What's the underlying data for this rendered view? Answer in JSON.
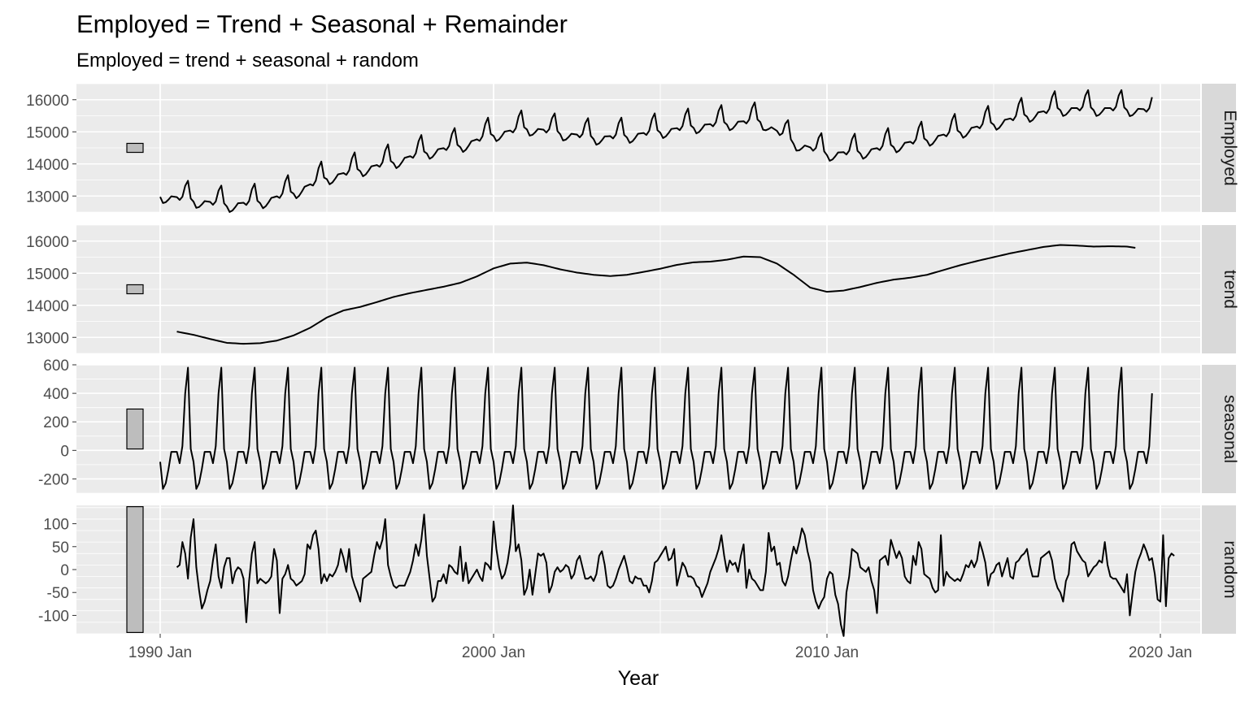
{
  "chart_data": {
    "type": "line",
    "title": "Employed = Trend + Seasonal + Remainder",
    "subtitle": "Employed = trend + seasonal + random",
    "xlabel": "Year",
    "x_range": [
      "1990 Jan",
      "2019 Sep"
    ],
    "x_ticks": [
      "1990 Jan",
      "2000 Jan",
      "2010 Jan",
      "2020 Jan"
    ],
    "grid": true,
    "scale_bars_shown": true,
    "panels": [
      {
        "name": "Employed",
        "ylim": [
          12500,
          16500
        ],
        "y_ticks": [
          13000,
          14000,
          15000,
          16000
        ],
        "start": 1990.0,
        "seasonal_overlay": true,
        "values": [
          13220,
          13000,
          13050,
          13150,
          13200,
          13180,
          13160,
          13250,
          13700,
          13650,
          13100,
          12780
        ],
        "base_knots": [
          [
            1990.0,
            13050
          ],
          [
            1991.0,
            12900
          ],
          [
            1992.0,
            12750
          ],
          [
            1993.0,
            12850
          ],
          [
            1994.0,
            13150
          ],
          [
            1995.0,
            13600
          ],
          [
            1996.0,
            13850
          ],
          [
            1997.0,
            14100
          ],
          [
            1998.0,
            14400
          ],
          [
            1999.0,
            14600
          ],
          [
            2000.0,
            14950
          ],
          [
            2001.0,
            15150
          ],
          [
            2002.0,
            15000
          ],
          [
            2003.0,
            14850
          ],
          [
            2004.0,
            14900
          ],
          [
            2005.0,
            15050
          ],
          [
            2006.0,
            15200
          ],
          [
            2007.0,
            15300
          ],
          [
            2008.0,
            15380
          ],
          [
            2009.0,
            14700
          ],
          [
            2010.0,
            14350
          ],
          [
            2011.0,
            14400
          ],
          [
            2012.0,
            14600
          ],
          [
            2013.0,
            14800
          ],
          [
            2014.0,
            15050
          ],
          [
            2015.0,
            15300
          ],
          [
            2016.0,
            15550
          ],
          [
            2017.0,
            15750
          ],
          [
            2018.0,
            15750
          ],
          [
            2019.0,
            15750
          ],
          [
            2019.75,
            15700
          ]
        ],
        "end": 2019.75
      },
      {
        "name": "trend",
        "ylim": [
          12500,
          16500
        ],
        "y_ticks": [
          13000,
          14000,
          15000,
          16000
        ],
        "knots": [
          [
            1990.5,
            13180
          ],
          [
            1991.0,
            13080
          ],
          [
            1991.5,
            12950
          ],
          [
            1992.0,
            12830
          ],
          [
            1992.5,
            12800
          ],
          [
            1993.0,
            12820
          ],
          [
            1993.5,
            12900
          ],
          [
            1994.0,
            13060
          ],
          [
            1994.5,
            13300
          ],
          [
            1995.0,
            13620
          ],
          [
            1995.5,
            13840
          ],
          [
            1996.0,
            13950
          ],
          [
            1996.5,
            14100
          ],
          [
            1997.0,
            14260
          ],
          [
            1997.5,
            14380
          ],
          [
            1998.0,
            14480
          ],
          [
            1998.5,
            14580
          ],
          [
            1999.0,
            14700
          ],
          [
            1999.5,
            14900
          ],
          [
            2000.0,
            15150
          ],
          [
            2000.5,
            15300
          ],
          [
            2001.0,
            15330
          ],
          [
            2001.5,
            15250
          ],
          [
            2002.0,
            15120
          ],
          [
            2002.5,
            15020
          ],
          [
            2003.0,
            14950
          ],
          [
            2003.5,
            14910
          ],
          [
            2004.0,
            14950
          ],
          [
            2004.5,
            15040
          ],
          [
            2005.0,
            15140
          ],
          [
            2005.5,
            15260
          ],
          [
            2006.0,
            15340
          ],
          [
            2006.5,
            15360
          ],
          [
            2007.0,
            15420
          ],
          [
            2007.5,
            15520
          ],
          [
            2008.0,
            15500
          ],
          [
            2008.5,
            15300
          ],
          [
            2009.0,
            14950
          ],
          [
            2009.5,
            14550
          ],
          [
            2010.0,
            14420
          ],
          [
            2010.5,
            14460
          ],
          [
            2011.0,
            14570
          ],
          [
            2011.5,
            14700
          ],
          [
            2012.0,
            14800
          ],
          [
            2012.5,
            14860
          ],
          [
            2013.0,
            14950
          ],
          [
            2013.5,
            15100
          ],
          [
            2014.0,
            15250
          ],
          [
            2014.5,
            15380
          ],
          [
            2015.0,
            15500
          ],
          [
            2015.5,
            15620
          ],
          [
            2016.0,
            15720
          ],
          [
            2016.5,
            15820
          ],
          [
            2017.0,
            15880
          ],
          [
            2017.5,
            15860
          ],
          [
            2018.0,
            15830
          ],
          [
            2018.5,
            15840
          ],
          [
            2019.0,
            15830
          ],
          [
            2019.25,
            15790
          ]
        ]
      },
      {
        "name": "seasonal",
        "ylim": [
          -300,
          600
        ],
        "y_ticks": [
          -200,
          0,
          200,
          400,
          600
        ],
        "start": 1990.0,
        "end": 2019.75,
        "pattern": [
          -80,
          -270,
          -230,
          -130,
          -10,
          -10,
          -10,
          -90,
          30,
          400,
          580,
          10
        ]
      },
      {
        "name": "random",
        "ylim": [
          -140,
          140
        ],
        "y_ticks": [
          -100,
          -50,
          0,
          50,
          100
        ],
        "start": 1990.5,
        "values": [
          5,
          10,
          60,
          35,
          -20,
          70,
          110,
          5,
          -45,
          -85,
          -70,
          -45,
          -25,
          20,
          55,
          -15,
          -40,
          5,
          25,
          25,
          -30,
          -5,
          5,
          0,
          -20,
          -115,
          -25,
          35,
          60,
          -30,
          -20,
          -25,
          -30,
          -25,
          -15,
          45,
          20,
          -95,
          -20,
          -10,
          10,
          -20,
          -25,
          -35,
          -30,
          -25,
          -10,
          55,
          45,
          75,
          85,
          45,
          -30,
          -10,
          -25,
          -10,
          -15,
          -5,
          10,
          45,
          25,
          -5,
          45,
          -15,
          -35,
          -50,
          -70,
          -20,
          -15,
          -10,
          -5,
          30,
          60,
          45,
          65,
          110,
          10,
          -15,
          -35,
          -40,
          -35,
          -35,
          -35,
          -20,
          -5,
          20,
          55,
          30,
          65,
          120,
          30,
          -20,
          -70,
          -60,
          -25,
          -25,
          -10,
          -30,
          10,
          5,
          -5,
          -10,
          50,
          -25,
          15,
          -30,
          -20,
          -10,
          0,
          -15,
          -25,
          15,
          10,
          0,
          105,
          45,
          5,
          -20,
          -10,
          15,
          55,
          140,
          40,
          55,
          20,
          -55,
          -40,
          0,
          -55,
          -10,
          35,
          30,
          35,
          15,
          -50,
          -35,
          -5,
          5,
          -5,
          0,
          10,
          5,
          -20,
          -10,
          20,
          30,
          5,
          -20,
          -20,
          -15,
          -25,
          -10,
          30,
          40,
          10,
          -35,
          -40,
          -35,
          -20,
          0,
          15,
          30,
          5,
          -25,
          -30,
          -15,
          -20,
          -20,
          -35,
          -35,
          -50,
          -25,
          15,
          20,
          30,
          40,
          50,
          20,
          25,
          45,
          -35,
          -10,
          15,
          5,
          -15,
          -15,
          -20,
          -35,
          -40,
          -60,
          -45,
          -30,
          -5,
          10,
          25,
          45,
          75,
          30,
          -5,
          20,
          10,
          15,
          -5,
          30,
          55,
          -40,
          0,
          -20,
          -25,
          -35,
          -45,
          -45,
          -5,
          80,
          40,
          50,
          10,
          15,
          -25,
          -35,
          -15,
          20,
          50,
          35,
          60,
          90,
          75,
          40,
          15,
          -45,
          -70,
          -85,
          -70,
          -60,
          -20,
          -5,
          -10,
          -55,
          -75,
          -120,
          -145,
          -50,
          -15,
          45,
          40,
          35,
          5,
          0,
          -5,
          5,
          -25,
          -45,
          -95,
          20,
          25,
          30,
          10,
          65,
          45,
          25,
          40,
          25,
          -15,
          -25,
          -30,
          30,
          10,
          60,
          45,
          -10,
          -15,
          -20,
          -40,
          -50,
          -45,
          75,
          -35,
          -5,
          -15,
          -20,
          -25,
          -20,
          -25,
          -10,
          10,
          5,
          20,
          5,
          20,
          60,
          40,
          15,
          -35,
          -10,
          -5,
          10,
          15,
          -15,
          5,
          25,
          -15,
          -20,
          15,
          20,
          30,
          35,
          45,
          10,
          -15,
          -15,
          -15,
          25,
          30,
          35,
          40,
          20,
          -20,
          -40,
          -50,
          -70,
          -25,
          -10,
          55,
          60,
          40,
          30,
          20,
          15,
          -15,
          -5,
          5,
          10,
          20,
          15,
          60,
          10,
          -15,
          -20,
          -20,
          -30,
          -40,
          -50,
          -10,
          -100,
          -50,
          -5,
          20,
          35,
          55,
          40,
          20,
          25,
          -10,
          -65,
          -70,
          75,
          -80,
          25,
          35,
          30
        ]
      }
    ]
  },
  "colors": {
    "panel_bg": "#ebebeb",
    "grid_major": "#ffffff",
    "strip_bg": "#d9d9d9",
    "line": "#000000",
    "scale_bar_fill": "#bdbdbd"
  }
}
